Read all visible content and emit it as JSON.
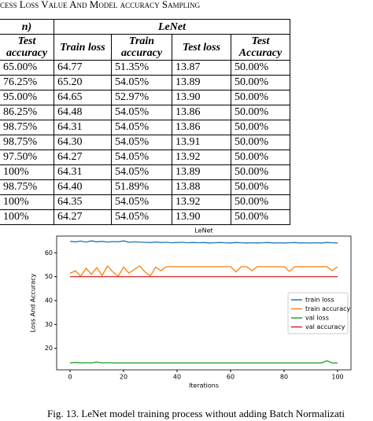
{
  "header": {
    "title": "cess Loss Value And Model accuracy Sampling"
  },
  "table": {
    "corner": "n)",
    "group": "LeNet",
    "columns": [
      "Test accuracy",
      "Train loss",
      "Train accuracy",
      "Test loss",
      "Test Accuracy"
    ],
    "rows": [
      [
        "65.00%",
        "64.77",
        "51.35%",
        "13.87",
        "50.00%"
      ],
      [
        "76.25%",
        "65.20",
        "54.05%",
        "13.89",
        "50.00%"
      ],
      [
        "95.00%",
        "64.65",
        "52.97%",
        "13.90",
        "50.00%"
      ],
      [
        "86.25%",
        "64.48",
        "54.05%",
        "13.86",
        "50.00%"
      ],
      [
        "98.75%",
        "64.31",
        "54.05%",
        "13.86",
        "50.00%"
      ],
      [
        "98.75%",
        "64.30",
        "54.05%",
        "13.91",
        "50.00%"
      ],
      [
        "97.50%",
        "64.27",
        "54.05%",
        "13.92",
        "50.00%"
      ],
      [
        "100%",
        "64.31",
        "54.05%",
        "13.89",
        "50.00%"
      ],
      [
        "98.75%",
        "64.40",
        "51.89%",
        "13.88",
        "50.00%"
      ],
      [
        "100%",
        "64.35",
        "54.05%",
        "13.92",
        "50.00%"
      ],
      [
        "100%",
        "64.27",
        "54.05%",
        "13.90",
        "50.00%"
      ]
    ]
  },
  "chart_data": {
    "type": "line",
    "title": "LeNet",
    "x_label": "Iterations",
    "y_label": "Loss And Accuracy",
    "x": [
      0,
      2,
      4,
      6,
      8,
      10,
      12,
      14,
      16,
      18,
      20,
      22,
      24,
      26,
      28,
      30,
      32,
      34,
      36,
      38,
      40,
      42,
      44,
      46,
      48,
      50,
      52,
      54,
      56,
      58,
      60,
      62,
      64,
      66,
      68,
      70,
      72,
      74,
      76,
      78,
      80,
      82,
      84,
      86,
      88,
      90,
      92,
      94,
      96,
      98,
      100
    ],
    "series": [
      {
        "name": "train loss",
        "color": "#1f77b4",
        "values": [
          64.8,
          64.6,
          64.9,
          64.5,
          65.0,
          64.6,
          64.8,
          64.5,
          64.7,
          64.6,
          65.0,
          64.4,
          64.6,
          64.5,
          64.4,
          64.3,
          64.5,
          64.3,
          64.4,
          64.2,
          64.3,
          64.4,
          64.2,
          64.3,
          64.2,
          64.3,
          64.1,
          64.2,
          64.3,
          64.2,
          64.1,
          64.3,
          64.2,
          64.1,
          64.2,
          64.1,
          64.2,
          64.3,
          64.1,
          64.2,
          64.1,
          64.2,
          64.3,
          64.1,
          64.2,
          64.1,
          64.2,
          64.1,
          64.3,
          64.2,
          64.1
        ]
      },
      {
        "name": "train accuracy",
        "color": "#ff7f0e",
        "values": [
          51.4,
          52.5,
          50.2,
          53.5,
          51.0,
          53.8,
          50.5,
          54.5,
          52.0,
          50.2,
          54.0,
          51.5,
          53.0,
          54.5,
          52.0,
          50.3,
          54.0,
          52.5,
          54.2,
          54.2,
          54.2,
          54.2,
          54.2,
          54.2,
          54.2,
          54.2,
          54.2,
          54.2,
          54.2,
          54.2,
          54.2,
          52.0,
          54.2,
          54.2,
          52.5,
          54.2,
          54.2,
          54.2,
          54.2,
          54.2,
          54.2,
          52.2,
          54.2,
          54.2,
          54.2,
          54.2,
          54.2,
          54.2,
          54.2,
          52.5,
          54.2
        ]
      },
      {
        "name": "val loss",
        "color": "#2ca02c",
        "values": [
          13.9,
          14.1,
          13.9,
          14.0,
          13.9,
          14.3,
          13.9,
          14.0,
          13.9,
          13.9,
          13.9,
          13.9,
          13.9,
          13.9,
          13.9,
          13.9,
          13.9,
          13.9,
          13.9,
          13.9,
          13.9,
          13.9,
          13.9,
          13.9,
          13.9,
          13.9,
          13.9,
          13.9,
          13.9,
          13.9,
          13.9,
          13.9,
          13.9,
          13.9,
          13.9,
          13.9,
          13.9,
          13.9,
          13.9,
          13.9,
          13.9,
          13.9,
          13.9,
          13.9,
          13.9,
          13.9,
          13.9,
          13.9,
          14.8,
          13.9,
          13.9
        ]
      },
      {
        "name": "val accuracy",
        "color": "#d62728",
        "values": [
          50,
          50,
          50,
          50,
          50,
          50,
          50,
          50,
          50,
          50,
          50,
          50,
          50,
          50,
          50,
          50,
          50,
          50,
          50,
          50,
          50,
          50,
          50,
          50,
          50,
          50,
          50,
          50,
          50,
          50,
          50,
          50,
          50,
          50,
          50,
          50,
          50,
          50,
          50,
          50,
          50,
          50,
          50,
          50,
          50,
          50,
          50,
          50,
          50,
          50,
          50
        ]
      }
    ],
    "xlim": [
      -5,
      105
    ],
    "ylim": [
      11,
      67
    ],
    "xticks": [
      0,
      20,
      40,
      60,
      80,
      100
    ],
    "yticks": [
      20,
      30,
      40,
      50,
      60
    ],
    "legend": "right"
  },
  "caption": "Fig. 13. LeNet model training process without adding Batch Normalizati"
}
